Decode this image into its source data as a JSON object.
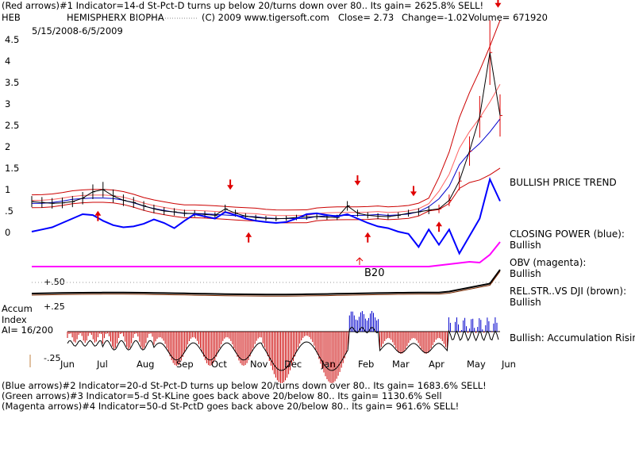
{
  "header": {
    "line1": "(Red arrows)#1 Indicator=14-d St-Pct-D turns up below 20/turns down over 80.. Its gain= 2625.8% SELL!",
    "ticker": "HEB",
    "company": "HEMISPHERX BIOPHA",
    "copyright": "(C) 2009 www.tigersoft.com",
    "close": "Close=   2.73",
    "change": "Change=-1.02",
    "volume": "Volume=  671920",
    "date_range": "5/15/2008-6/5/2009"
  },
  "footer": {
    "line1": "(Blue arrows)#2 Indicator=20-d St-Pct-D turns up below 20/turns down over 80.. Its gain= 1683.6% SELL!",
    "line2": "(Green arrows)#3 Indicator=5-d St-KLine goes back above 20/below 80.. Its gain= 1130.6% Sell",
    "line3": "(Magenta arrows)#4 Indicator=50-d St-PctD goes back above 20/below 80.. Its gain= 961.6% SELL!"
  },
  "panels": {
    "price_trend": "BULLISH PRICE TREND",
    "closing_power_label": "CLOSING POWER (blue):",
    "closing_power_status": "Bullish",
    "obv_label": "OBV (magenta):",
    "obv_status": "Bullish",
    "relstr_label": "REL.STR..VS DJI (brown):",
    "relstr_status": "Bullish",
    "accum_status": "Bullish: Accumulation Rising",
    "accum_title1": "Accum",
    "accum_title2": "Index",
    "ai_label": "AI= 16/200",
    "plus50": "+.50",
    "plus25": "+.25",
    "minus25": "-.25",
    "b20": "B20"
  },
  "chart_data": {
    "type": "candlestick",
    "y_ticks": [
      "4.5",
      "4",
      "3.5",
      "3",
      "2.5",
      "2",
      "1.5",
      "1",
      ".5",
      "0"
    ],
    "ylim": [
      0,
      4.5
    ],
    "x_months": [
      "Jun",
      "Jul",
      "Aug",
      "Sep",
      "Oct",
      "Nov",
      "Dec",
      "Jan",
      "Feb",
      "Mar",
      "Apr",
      "May",
      "Jun"
    ],
    "colors": {
      "price": "#000000",
      "red": "#e00000",
      "closing_power": "#0000ff",
      "obv": "#ff00ff",
      "relstr": "#7a2a00",
      "accum_pos": "#0000cc",
      "accum_neg": "#cc0000"
    },
    "price_close": [
      0.72,
      0.7,
      0.68,
      0.69,
      0.72,
      0.8,
      0.95,
      1.0,
      0.85,
      0.75,
      0.7,
      0.62,
      0.55,
      0.5,
      0.48,
      0.45,
      0.44,
      0.42,
      0.4,
      0.55,
      0.45,
      0.38,
      0.35,
      0.33,
      0.32,
      0.33,
      0.35,
      0.36,
      0.37,
      0.36,
      0.35,
      0.62,
      0.45,
      0.4,
      0.38,
      0.37,
      0.4,
      0.45,
      0.48,
      0.52,
      0.55,
      0.75,
      1.2,
      1.9,
      2.7,
      4.2,
      2.73
    ],
    "closing_power": [
      0,
      0.05,
      0.1,
      0.2,
      0.3,
      0.4,
      0.38,
      0.25,
      0.15,
      0.1,
      0.12,
      0.18,
      0.28,
      0.2,
      0.08,
      0.25,
      0.4,
      0.35,
      0.3,
      0.45,
      0.38,
      0.3,
      0.25,
      0.22,
      0.2,
      0.22,
      0.3,
      0.4,
      0.42,
      0.38,
      0.35,
      0.4,
      0.3,
      0.2,
      0.12,
      0.08,
      0.0,
      -0.05,
      -0.35,
      0.05,
      -0.3,
      0.05,
      -0.5,
      -0.1,
      0.3,
      1.2,
      0.7
    ],
    "red_arrows": [
      {
        "x": 6.5,
        "dir": "up",
        "y": 0.45
      },
      {
        "x": 19.5,
        "dir": "down",
        "y": 1.05
      },
      {
        "x": 21.3,
        "dir": "up",
        "y": -0.05
      },
      {
        "x": 32.0,
        "dir": "down",
        "y": 1.15
      },
      {
        "x": 33.0,
        "dir": "up",
        "y": -0.05
      },
      {
        "x": 37.5,
        "dir": "down",
        "y": 0.9
      },
      {
        "x": 40.0,
        "dir": "up",
        "y": 0.2
      },
      {
        "x": 45.8,
        "dir": "down",
        "y": 5.3
      }
    ]
  }
}
